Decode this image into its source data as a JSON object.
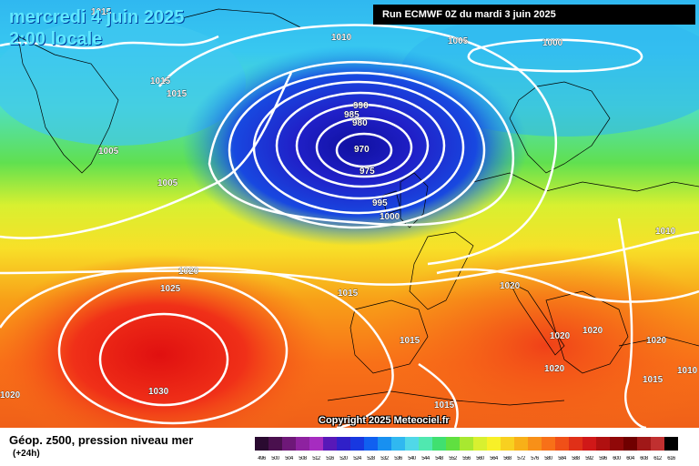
{
  "header": {
    "date_line": "mercredi 4 juin 2025",
    "time_line": "2:00 locale",
    "run_info": "Run ECMWF 0Z du mardi 3 juin 2025"
  },
  "footer": {
    "title": "Géop. z500, pression niveau mer",
    "lead_time": "(+24h)",
    "copyright": "Copyright 2025 Meteociel.fr"
  },
  "legend": {
    "values": [
      "496",
      "500",
      "504",
      "508",
      "512",
      "516",
      "520",
      "524",
      "528",
      "532",
      "536",
      "540",
      "544",
      "548",
      "552",
      "556",
      "560",
      "564",
      "568",
      "572",
      "576",
      "580",
      "584",
      "588",
      "592",
      "596",
      "600",
      "604",
      "608",
      "612",
      "616"
    ],
    "colors": [
      "#2a0a30",
      "#4a104e",
      "#6e1878",
      "#8e22a0",
      "#a62cc0",
      "#5818b8",
      "#3020c8",
      "#1838e0",
      "#1060f0",
      "#1890f0",
      "#30b8f0",
      "#50d8e8",
      "#50e8b0",
      "#40e070",
      "#60e040",
      "#a8e830",
      "#d8f030",
      "#f8f028",
      "#f8d020",
      "#f8b018",
      "#f89018",
      "#f87018",
      "#f05018",
      "#e03018",
      "#d01818",
      "#b01010",
      "#900808",
      "#700000",
      "#a01818",
      "#c03030",
      "#000000"
    ]
  },
  "isobars": [
    {
      "value": "1015",
      "pos": "top-left"
    },
    {
      "value": "1010",
      "pos": "top"
    },
    {
      "value": "1005",
      "pos": "top-center"
    },
    {
      "value": "1000",
      "pos": "top-right"
    },
    {
      "value": "1015",
      "pos": "greenland-1"
    },
    {
      "value": "1015",
      "pos": "greenland-2"
    },
    {
      "value": "1005",
      "pos": "west-1"
    },
    {
      "value": "1005",
      "pos": "west-2"
    },
    {
      "value": "990",
      "pos": "low-1"
    },
    {
      "value": "985",
      "pos": "low-2"
    },
    {
      "value": "980",
      "pos": "low-3"
    },
    {
      "value": "970",
      "pos": "low-center"
    },
    {
      "value": "975",
      "pos": "low-4"
    },
    {
      "value": "995",
      "pos": "low-5"
    },
    {
      "value": "1000",
      "pos": "low-6"
    },
    {
      "value": "1010",
      "pos": "east"
    },
    {
      "value": "1020",
      "pos": "atlantic-1"
    },
    {
      "value": "1025",
      "pos": "atlantic-2"
    },
    {
      "value": "1015",
      "pos": "biscay"
    },
    {
      "value": "1020",
      "pos": "alps"
    },
    {
      "value": "1015",
      "pos": "iberia"
    },
    {
      "value": "1020",
      "pos": "balkans"
    },
    {
      "value": "1020",
      "pos": "turkey"
    },
    {
      "value": "1020",
      "pos": "italy-1"
    },
    {
      "value": "1020",
      "pos": "italy-2"
    },
    {
      "value": "1015",
      "pos": "east-med"
    },
    {
      "value": "1010",
      "pos": "far-east"
    },
    {
      "value": "1020",
      "pos": "far-west"
    },
    {
      "value": "1030",
      "pos": "azores-high"
    },
    {
      "value": "1015",
      "pos": "north-africa"
    }
  ]
}
